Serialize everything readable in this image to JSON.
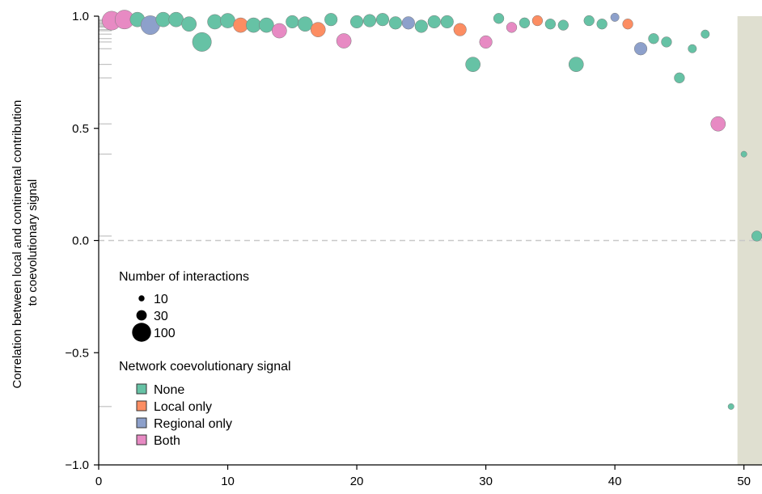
{
  "chart_data": {
    "type": "scatter",
    "ylabel_lines": [
      "Correlation between local and continental contribution",
      "to coevolutionary signal"
    ],
    "xlabel": "",
    "xlim": [
      0,
      51.4
    ],
    "ylim": [
      -1.0,
      1.0
    ],
    "x_ticks": [
      0,
      10,
      20,
      30,
      40,
      50
    ],
    "x_tick_labels": [
      "0",
      "10",
      "20",
      "30",
      "40",
      "50"
    ],
    "y_ticks": [
      -1.0,
      -0.5,
      0.0,
      0.5,
      1.0
    ],
    "y_tick_labels": [
      "−1.0",
      "−0.5",
      "0.0",
      "0.5",
      "1.0"
    ],
    "reference_line_y": 0.0,
    "shaded_region_x": [
      49.5,
      51.4
    ],
    "size_legend": {
      "title": "Number of interactions",
      "entries": [
        {
          "label": "10",
          "value": 10
        },
        {
          "label": "30",
          "value": 30
        },
        {
          "label": "100",
          "value": 100
        }
      ]
    },
    "color_legend": {
      "title": "Network coevolutionary signal",
      "entries": [
        {
          "key": "none",
          "label": "None",
          "color": "#66c2a5"
        },
        {
          "key": "local",
          "label": "Local only",
          "color": "#fc8d62"
        },
        {
          "key": "regional",
          "label": "Regional only",
          "color": "#8da0cb"
        },
        {
          "key": "both",
          "label": "Both",
          "color": "#e78ac3"
        }
      ]
    },
    "points": [
      {
        "x": 1,
        "y": 0.98,
        "n": 100,
        "group": "both"
      },
      {
        "x": 2,
        "y": 0.985,
        "n": 100,
        "group": "both"
      },
      {
        "x": 3,
        "y": 0.985,
        "n": 60,
        "group": "none"
      },
      {
        "x": 4,
        "y": 0.96,
        "n": 100,
        "group": "regional"
      },
      {
        "x": 5,
        "y": 0.985,
        "n": 60,
        "group": "none"
      },
      {
        "x": 6,
        "y": 0.985,
        "n": 60,
        "group": "none"
      },
      {
        "x": 7,
        "y": 0.965,
        "n": 60,
        "group": "none"
      },
      {
        "x": 8,
        "y": 0.885,
        "n": 100,
        "group": "none"
      },
      {
        "x": 9,
        "y": 0.975,
        "n": 60,
        "group": "none"
      },
      {
        "x": 10,
        "y": 0.98,
        "n": 60,
        "group": "none"
      },
      {
        "x": 11,
        "y": 0.96,
        "n": 60,
        "group": "local"
      },
      {
        "x": 12,
        "y": 0.96,
        "n": 60,
        "group": "none"
      },
      {
        "x": 13,
        "y": 0.96,
        "n": 60,
        "group": "none"
      },
      {
        "x": 14,
        "y": 0.935,
        "n": 60,
        "group": "both"
      },
      {
        "x": 15,
        "y": 0.975,
        "n": 45,
        "group": "none"
      },
      {
        "x": 16,
        "y": 0.965,
        "n": 60,
        "group": "none"
      },
      {
        "x": 17,
        "y": 0.94,
        "n": 60,
        "group": "local"
      },
      {
        "x": 18,
        "y": 0.985,
        "n": 45,
        "group": "none"
      },
      {
        "x": 19,
        "y": 0.89,
        "n": 60,
        "group": "both"
      },
      {
        "x": 20,
        "y": 0.975,
        "n": 45,
        "group": "none"
      },
      {
        "x": 21,
        "y": 0.98,
        "n": 45,
        "group": "none"
      },
      {
        "x": 22,
        "y": 0.985,
        "n": 45,
        "group": "none"
      },
      {
        "x": 23,
        "y": 0.97,
        "n": 45,
        "group": "none"
      },
      {
        "x": 24,
        "y": 0.97,
        "n": 45,
        "group": "regional"
      },
      {
        "x": 25,
        "y": 0.955,
        "n": 45,
        "group": "none"
      },
      {
        "x": 26,
        "y": 0.975,
        "n": 45,
        "group": "none"
      },
      {
        "x": 27,
        "y": 0.975,
        "n": 45,
        "group": "none"
      },
      {
        "x": 28,
        "y": 0.94,
        "n": 45,
        "group": "local"
      },
      {
        "x": 29,
        "y": 0.785,
        "n": 60,
        "group": "none"
      },
      {
        "x": 30,
        "y": 0.885,
        "n": 45,
        "group": "both"
      },
      {
        "x": 31,
        "y": 0.99,
        "n": 30,
        "group": "none"
      },
      {
        "x": 32,
        "y": 0.95,
        "n": 30,
        "group": "both"
      },
      {
        "x": 33,
        "y": 0.97,
        "n": 30,
        "group": "none"
      },
      {
        "x": 34,
        "y": 0.98,
        "n": 30,
        "group": "local"
      },
      {
        "x": 35,
        "y": 0.965,
        "n": 30,
        "group": "none"
      },
      {
        "x": 36,
        "y": 0.96,
        "n": 30,
        "group": "none"
      },
      {
        "x": 37,
        "y": 0.785,
        "n": 60,
        "group": "none"
      },
      {
        "x": 38,
        "y": 0.98,
        "n": 30,
        "group": "none"
      },
      {
        "x": 39,
        "y": 0.965,
        "n": 30,
        "group": "none"
      },
      {
        "x": 40,
        "y": 0.995,
        "n": 20,
        "group": "regional"
      },
      {
        "x": 41,
        "y": 0.965,
        "n": 30,
        "group": "local"
      },
      {
        "x": 42,
        "y": 0.855,
        "n": 45,
        "group": "regional"
      },
      {
        "x": 43,
        "y": 0.9,
        "n": 30,
        "group": "none"
      },
      {
        "x": 44,
        "y": 0.885,
        "n": 30,
        "group": "none"
      },
      {
        "x": 45,
        "y": 0.725,
        "n": 30,
        "group": "none"
      },
      {
        "x": 46,
        "y": 0.855,
        "n": 20,
        "group": "none"
      },
      {
        "x": 47,
        "y": 0.92,
        "n": 20,
        "group": "none"
      },
      {
        "x": 48,
        "y": 0.52,
        "n": 60,
        "group": "both"
      },
      {
        "x": 49,
        "y": -0.74,
        "n": 10,
        "group": "none"
      },
      {
        "x": 50,
        "y": 0.385,
        "n": 10,
        "group": "none"
      },
      {
        "x": 51,
        "y": 0.02,
        "n": 30,
        "group": "none"
      }
    ],
    "rug_y": [
      0.985,
      0.98,
      0.975,
      0.97,
      0.965,
      0.96,
      0.955,
      0.95,
      0.94,
      0.935,
      0.92,
      0.9,
      0.885,
      0.855,
      0.785,
      0.725,
      0.52,
      0.385,
      0.02,
      -0.74
    ]
  }
}
